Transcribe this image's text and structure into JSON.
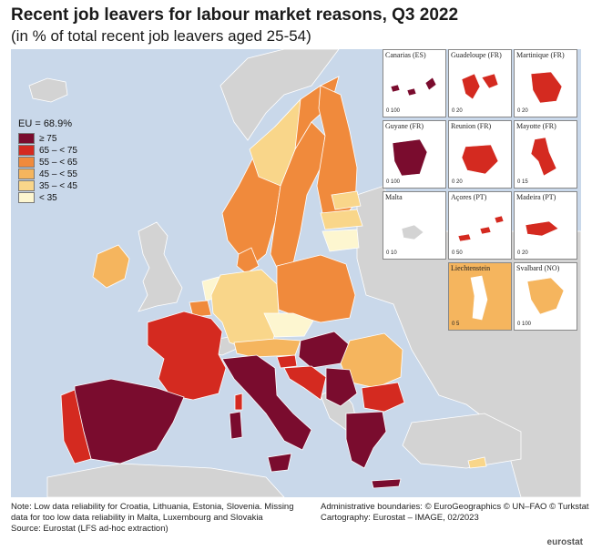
{
  "title": "Recent job leavers for labour market reasons, Q3 2022",
  "subtitle": "(in % of total recent job leavers aged 25-54)",
  "legend": {
    "eu_label": "EU = 68.9%",
    "items": [
      {
        "label": "≥ 75",
        "color": "#7a0c2e"
      },
      {
        "label": "65 – < 75",
        "color": "#d42a20"
      },
      {
        "label": "55 – < 65",
        "color": "#f08a3c"
      },
      {
        "label": "45 – < 55",
        "color": "#f5b55e"
      },
      {
        "label": "35 – < 45",
        "color": "#f9d68a"
      },
      {
        "label": "< 35",
        "color": "#fdf6d0"
      }
    ]
  },
  "colors": {
    "sea": "#c9d8ea",
    "non_eu_land": "#d3d3d3",
    "border": "#ffffff"
  },
  "insets": [
    {
      "name": "Canarias (ES)",
      "scale": "0   100"
    },
    {
      "name": "Guadeloupe (FR)",
      "scale": "0   20"
    },
    {
      "name": "Martinique (FR)",
      "scale": "0   20"
    },
    {
      "name": "Guyane (FR)",
      "scale": "0   100"
    },
    {
      "name": "Reunion (FR)",
      "scale": "0   20"
    },
    {
      "name": "Mayotte (FR)",
      "scale": "0   15"
    },
    {
      "name": "Malta",
      "scale": "0   10"
    },
    {
      "name": "Açores (PT)",
      "scale": "0   50"
    },
    {
      "name": "Madeira (PT)",
      "scale": "0   20"
    },
    {
      "name": "Liechtenstein",
      "scale": "0   5"
    },
    {
      "name": "Svalbard (NO)",
      "scale": "0   100"
    }
  ],
  "footer": {
    "note_line1": "Note: Low data reliability for Croatia, Lithuania, Estonia, Slovenia. Missing",
    "note_line2": "data for too low data reliability in Malta, Luxembourg and Slovakia",
    "source": "Source: Eurostat (LFS ad-hoc extraction)",
    "boundaries": "Administrative boundaries: © EuroGeographics © UN–FAO © Turkstat",
    "cartography": "Cartography: Eurostat – IMAGE, 02/2023",
    "logo": "eurostat"
  }
}
